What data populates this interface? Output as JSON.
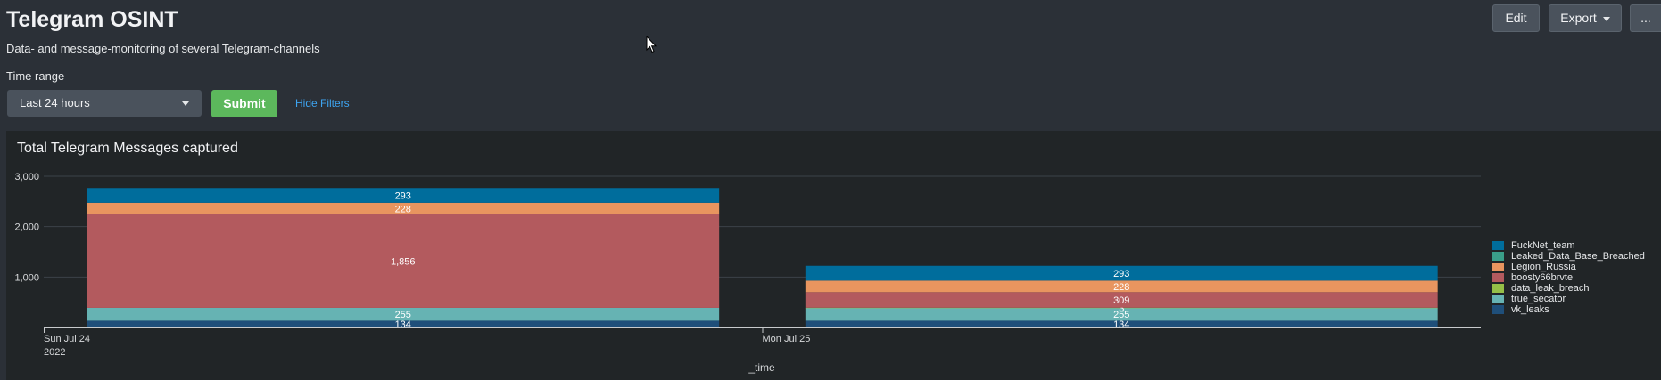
{
  "header": {
    "title": "Telegram OSINT",
    "subtitle": "Data- and message-monitoring of several Telegram-channels"
  },
  "toolbar": {
    "edit_label": "Edit",
    "export_label": "Export",
    "more_label": "..."
  },
  "filters": {
    "time_range_label": "Time range",
    "time_range_value": "Last 24 hours",
    "submit_label": "Submit",
    "hide_filters_label": "Hide Filters"
  },
  "panel": {
    "title": "Total Telegram Messages captured"
  },
  "chart_data": {
    "type": "bar",
    "stacked": true,
    "title": "Total Telegram Messages captured",
    "xlabel": "_time",
    "ylabel": "",
    "ylim": [
      0,
      3000
    ],
    "yticks": [
      "1,000",
      "2,000",
      "3,000"
    ],
    "ytick_values": [
      1000,
      2000,
      3000
    ],
    "categories": [
      "Sun Jul 24",
      "Mon Jul 25"
    ],
    "x_sublabels": [
      "2022",
      ""
    ],
    "grid": true,
    "legend_position": "right",
    "series": [
      {
        "name": "vk_leaks",
        "color": "#1f4f7a",
        "values": [
          134,
          134
        ],
        "labels": [
          "134",
          "134"
        ]
      },
      {
        "name": "true_secator",
        "color": "#66b3b3",
        "values": [
          255,
          255
        ],
        "labels": [
          "255",
          "255"
        ]
      },
      {
        "name": "data_leak_breach",
        "color": "#95bf47",
        "values": [
          0,
          3
        ],
        "labels": [
          "",
          "3"
        ]
      },
      {
        "name": "boosty66brvte",
        "color": "#b35a5e",
        "values": [
          1856,
          309
        ],
        "labels": [
          "1,856",
          "309"
        ]
      },
      {
        "name": "Legion_Russia",
        "color": "#e8955f",
        "values": [
          228,
          228
        ],
        "labels": [
          "228",
          "228"
        ]
      },
      {
        "name": "Leaked_Data_Base_Breached",
        "color": "#3a9e88",
        "values": [
          0,
          0
        ],
        "labels": [
          "",
          ""
        ]
      },
      {
        "name": "FuckNet_team",
        "color": "#006d9c",
        "values": [
          293,
          293
        ],
        "labels": [
          "293",
          "293"
        ]
      }
    ],
    "legend_order": [
      "FuckNet_team",
      "Leaked_Data_Base_Breached",
      "Legion_Russia",
      "boosty66brvte",
      "data_leak_breach",
      "true_secator",
      "vk_leaks"
    ]
  }
}
